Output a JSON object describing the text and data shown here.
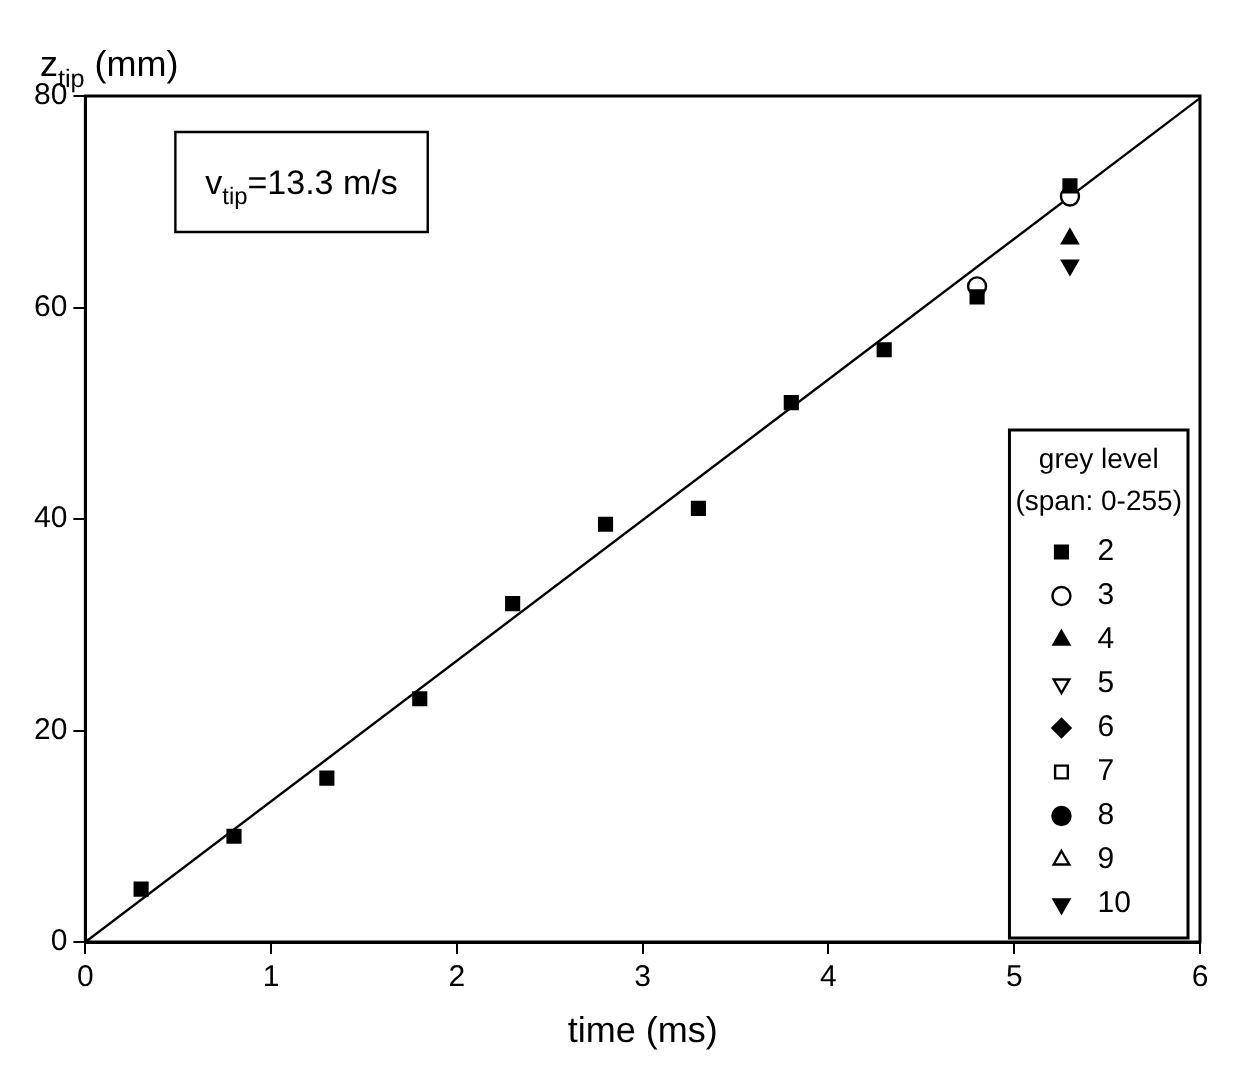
{
  "chart_data": {
    "type": "scatter",
    "xlabel": "time (ms)",
    "ylabel": "z$_{tip}$ (mm)",
    "legend_title": "grey level\n(span: 0-255)",
    "legend": "bottom right",
    "grid": false,
    "annotations": [
      "v$_{tip}$=13.3 m/s"
    ],
    "xlim": [
      0,
      6
    ],
    "xticks": [
      0,
      1,
      2,
      3,
      4,
      5,
      6
    ],
    "ylim": [
      0,
      80
    ],
    "yticks": [
      0,
      20,
      40,
      60,
      80
    ],
    "x": [
      0.3,
      0.8,
      1.3,
      1.8,
      2.3,
      2.8,
      3.3,
      3.8,
      4.3,
      4.8,
      5.3
    ],
    "series": [
      {
        "name": "2",
        "color": "#000000",
        "marker": "square",
        "values": [
          5,
          10,
          15.5,
          23,
          32,
          39.5,
          41,
          51,
          56,
          61,
          71.5
        ]
      },
      {
        "name": "3",
        "color": "#000000",
        "marker": "circle",
        "values": [
          null,
          null,
          null,
          null,
          null,
          null,
          null,
          null,
          null,
          62,
          70.5
        ]
      },
      {
        "name": "4",
        "color": "#000000",
        "marker": "triangle",
        "values": [
          null,
          null,
          null,
          null,
          null,
          null,
          null,
          null,
          null,
          null,
          66.5
        ]
      },
      {
        "name": "5",
        "color": "#000000",
        "marker": "triangle",
        "values": [
          null,
          null,
          null,
          null,
          null,
          null,
          null,
          null,
          null,
          null,
          null
        ]
      },
      {
        "name": "6",
        "color": "#000000",
        "marker": "diamond",
        "values": [
          null,
          null,
          null,
          null,
          null,
          null,
          null,
          null,
          null,
          null,
          null
        ]
      },
      {
        "name": "7",
        "color": "#000000",
        "marker": "square",
        "values": [
          null,
          null,
          null,
          null,
          null,
          null,
          null,
          null,
          null,
          null,
          null
        ]
      },
      {
        "name": "8",
        "color": "#000000",
        "marker": "circle",
        "values": [
          null,
          null,
          null,
          null,
          null,
          null,
          null,
          null,
          null,
          null,
          null
        ]
      },
      {
        "name": "9",
        "color": "#000000",
        "marker": "triangle",
        "values": [
          null,
          null,
          null,
          null,
          null,
          null,
          null,
          null,
          null,
          null,
          null
        ]
      },
      {
        "name": "10",
        "color": "#000000",
        "marker": "triangle",
        "values": [
          null,
          null,
          null,
          null,
          null,
          null,
          null,
          null,
          null,
          null,
          64
        ]
      },
      {
        "type": "line",
        "color": "#000000",
        "marker": "none",
        "x": [
          0,
          6
        ],
        "values": [
          0,
          79.8
        ]
      }
    ]
  }
}
